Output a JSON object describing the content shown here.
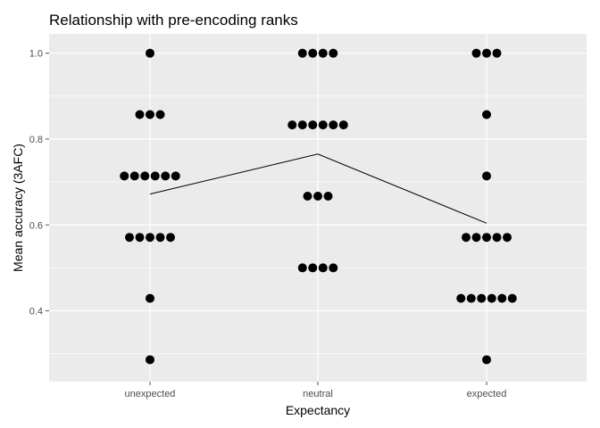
{
  "chart_data": {
    "type": "scatter",
    "subtype": "dotplot",
    "title": "Relationship with pre-encoding ranks",
    "xlabel": "Expectancy",
    "ylabel": "Mean accuracy (3AFC)",
    "categories": [
      "unexpected",
      "neutral",
      "expected"
    ],
    "ylim": [
      0.235,
      1.045
    ],
    "yticks": [
      0.4,
      0.6,
      0.8,
      1.0
    ],
    "ytick_labels": [
      "0.4",
      "0.6",
      "0.8",
      "1.0"
    ],
    "grid": true,
    "legend": "none",
    "points": [
      {
        "category": "unexpected",
        "values": [
          {
            "y": 1.0,
            "count": 1
          },
          {
            "y": 0.857,
            "count": 3
          },
          {
            "y": 0.714,
            "count": 6
          },
          {
            "y": 0.571,
            "count": 5
          },
          {
            "y": 0.429,
            "count": 1
          },
          {
            "y": 0.286,
            "count": 1
          }
        ]
      },
      {
        "category": "neutral",
        "values": [
          {
            "y": 1.0,
            "count": 4
          },
          {
            "y": 0.833,
            "count": 6
          },
          {
            "y": 0.667,
            "count": 3
          },
          {
            "y": 0.5,
            "count": 4
          }
        ]
      },
      {
        "category": "expected",
        "values": [
          {
            "y": 1.0,
            "count": 3
          },
          {
            "y": 0.857,
            "count": 1
          },
          {
            "y": 0.714,
            "count": 1
          },
          {
            "y": 0.571,
            "count": 5
          },
          {
            "y": 0.429,
            "count": 6
          },
          {
            "y": 0.286,
            "count": 1
          }
        ]
      }
    ],
    "mean_line": {
      "categories": [
        "unexpected",
        "neutral",
        "expected"
      ],
      "values": [
        0.672,
        0.765,
        0.604
      ]
    },
    "colors": {
      "panel": "#ebebeb",
      "grid": "#ffffff",
      "points": "#000000",
      "line": "#000000",
      "ticks": "#4d4d4d"
    }
  }
}
